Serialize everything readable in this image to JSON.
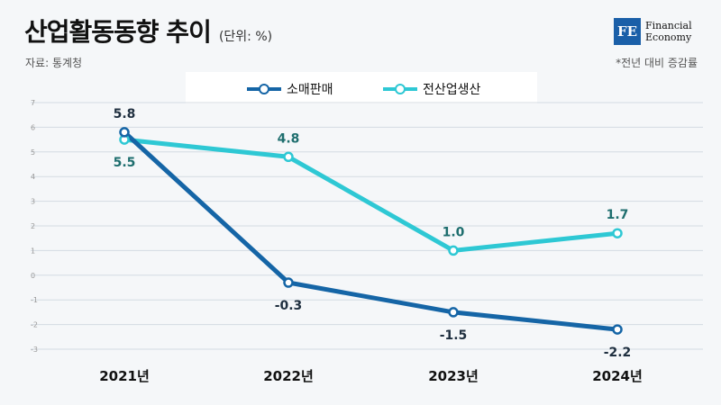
{
  "header": {
    "title": "산업활동동향 추이",
    "unit": "(단위: %)",
    "source": "자료: 통계청",
    "note": "*전년 대비 증감률"
  },
  "logo": {
    "mark": "FE",
    "line1": "Financial",
    "line2": "Economy"
  },
  "colors": {
    "retail": "#1565a6",
    "production": "#2ec8d4"
  },
  "chart_data": {
    "type": "line",
    "categories": [
      "2021년",
      "2022년",
      "2023년",
      "2024년"
    ],
    "series": [
      {
        "name": "소매판매",
        "values": [
          5.8,
          -0.3,
          -1.5,
          -2.2
        ],
        "labels": [
          "5.8",
          "-0.3",
          "-1.5",
          "-2.2"
        ]
      },
      {
        "name": "전산업생산",
        "values": [
          5.5,
          4.8,
          1.0,
          1.7
        ],
        "labels": [
          "5.5",
          "4.8",
          "1.0",
          "1.7"
        ]
      }
    ],
    "ylim": [
      -3,
      7
    ],
    "yticks": [
      -3,
      -2,
      -1,
      0,
      1,
      2,
      3,
      4,
      5,
      6,
      7
    ],
    "ytick_labels": [
      "-3",
      "-2",
      "-1",
      "0",
      "1",
      "2",
      "3",
      "4",
      "5",
      "6",
      "7"
    ],
    "grid": true,
    "legend": "top"
  }
}
